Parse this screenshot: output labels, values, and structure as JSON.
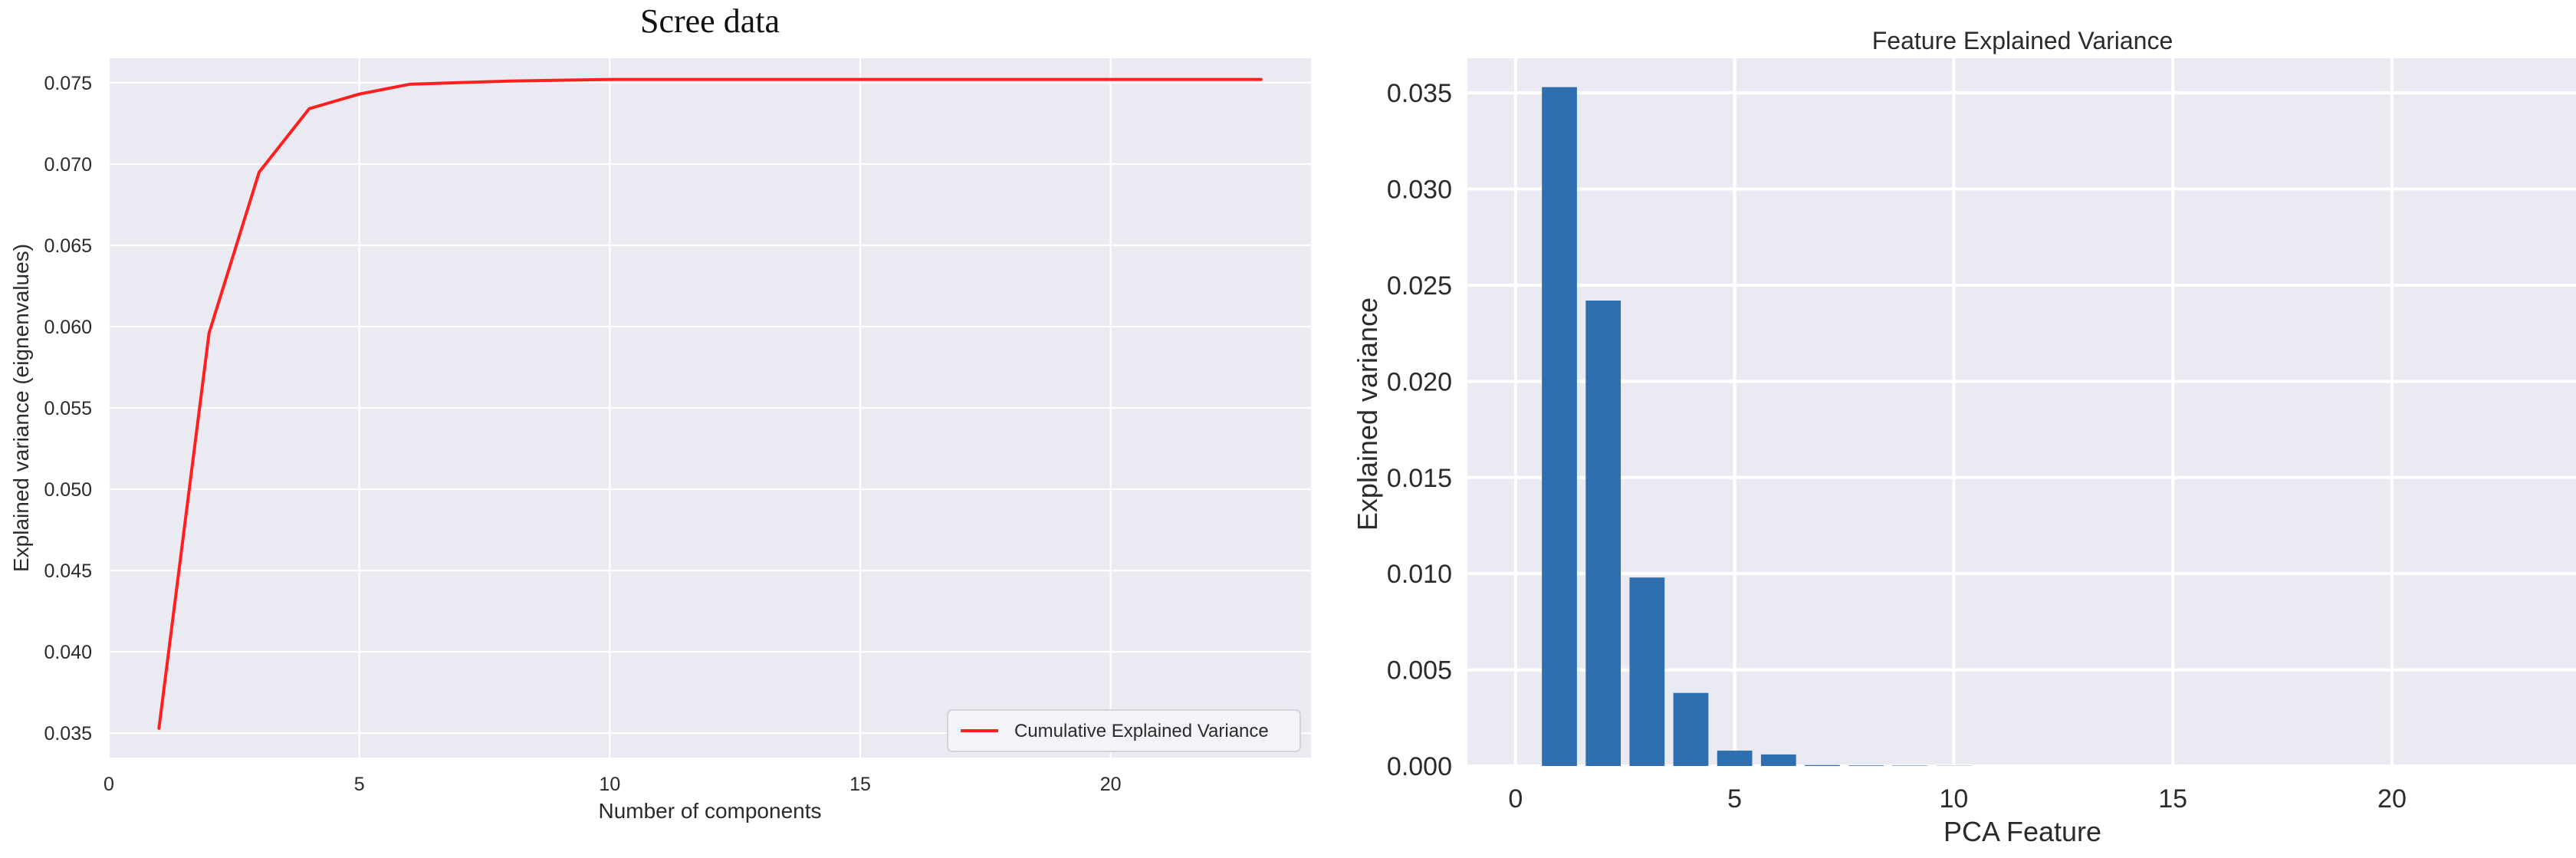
{
  "chart_data": [
    {
      "type": "line",
      "title": "Scree data",
      "xlabel": "Number of components",
      "ylabel": "Explained variance (eignenvalues)",
      "xlim": [
        0,
        24
      ],
      "ylim": [
        0.0335,
        0.0765
      ],
      "xticks": [
        "0",
        "5",
        "10",
        "15",
        "20"
      ],
      "yticks": [
        "0.035",
        "0.040",
        "0.045",
        "0.050",
        "0.055",
        "0.060",
        "0.065",
        "0.070",
        "0.075"
      ],
      "grid": true,
      "legend_position": "bottom-right",
      "series": [
        {
          "name": "Cumulative Explained Variance",
          "color": "#ff1f1f",
          "x": [
            1,
            2,
            3,
            4,
            5,
            6,
            7,
            8,
            9,
            10,
            11,
            12,
            13,
            14,
            15,
            16,
            17,
            18,
            19,
            20,
            21,
            22,
            23
          ],
          "values": [
            0.0353,
            0.0596,
            0.0695,
            0.0734,
            0.0743,
            0.0749,
            0.075,
            0.0751,
            0.07515,
            0.0752,
            0.0752,
            0.0752,
            0.0752,
            0.0752,
            0.0752,
            0.0752,
            0.0752,
            0.0752,
            0.0752,
            0.0752,
            0.0752,
            0.0752,
            0.0752
          ]
        }
      ]
    },
    {
      "type": "bar",
      "title": "Feature Explained Variance",
      "xlabel": "PCA Feature",
      "ylabel": "Explained variance",
      "xlim": [
        -1.1,
        24.2
      ],
      "ylim": [
        0,
        0.0368
      ],
      "xticks": [
        "0",
        "5",
        "10",
        "15",
        "20"
      ],
      "yticks": [
        "0.000",
        "0.005",
        "0.010",
        "0.015",
        "0.020",
        "0.025",
        "0.030",
        "0.035"
      ],
      "grid": true,
      "bar_color": "#2f6fb0",
      "x": [
        1,
        2,
        3,
        4,
        5,
        6,
        7,
        8,
        9,
        10,
        11,
        12,
        13,
        14,
        15,
        16,
        17,
        18,
        19,
        20,
        21,
        22,
        23
      ],
      "values": [
        0.0353,
        0.0242,
        0.0098,
        0.0038,
        0.0008,
        0.0006,
        5e-05,
        3e-05,
        2e-05,
        1e-05,
        0,
        0,
        0,
        0,
        0,
        0,
        0,
        0,
        0,
        0,
        0,
        0,
        0
      ]
    }
  ]
}
